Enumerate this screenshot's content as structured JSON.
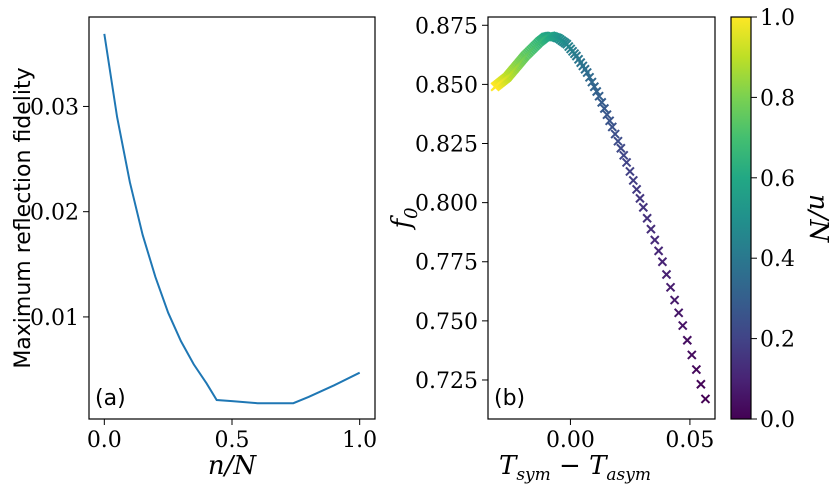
{
  "chart_data": [
    {
      "type": "line",
      "panel_label": "(a)",
      "xlabel": "n/N",
      "ylabel": "Maximum reflection fidelity",
      "xlim": [
        -0.06,
        1.06
      ],
      "ylim": [
        0.0003,
        0.0385
      ],
      "xticks": [
        0.0,
        0.5,
        1.0
      ],
      "xtick_labels": [
        "0.0",
        "0.5",
        "1.0"
      ],
      "yticks": [
        0.01,
        0.02,
        0.03
      ],
      "ytick_labels": [
        "0.01",
        "0.02",
        "0.03"
      ],
      "color": "#1f77b4",
      "x": [
        0.0,
        0.05,
        0.1,
        0.15,
        0.2,
        0.25,
        0.3,
        0.35,
        0.4,
        0.44,
        0.5,
        0.6,
        0.74,
        0.8,
        0.9,
        1.0
      ],
      "y": [
        0.0369,
        0.029,
        0.0228,
        0.0178,
        0.0138,
        0.0104,
        0.0077,
        0.0055,
        0.0037,
        0.0021,
        0.002,
        0.0018,
        0.0018,
        0.0024,
        0.0035,
        0.0047
      ],
      "grid": false,
      "legend": "none"
    },
    {
      "type": "scatter",
      "panel_label": "(b)",
      "xlabel": "T_sym − T_asym",
      "xlabel_parts": [
        "T",
        "sym",
        " − T",
        "asym"
      ],
      "ylabel": "f_0",
      "ylabel_parts": [
        "f",
        "0"
      ],
      "marker": "x",
      "xlim": [
        -0.0345,
        0.0605
      ],
      "ylim": [
        0.7085,
        0.8785
      ],
      "xticks": [
        0.0,
        0.05
      ],
      "xtick_labels": [
        "0.00",
        "0.05"
      ],
      "yticks": [
        0.725,
        0.75,
        0.775,
        0.8,
        0.825,
        0.85,
        0.875
      ],
      "ytick_labels": [
        "0.725",
        "0.750",
        "0.775",
        "0.800",
        "0.825",
        "0.850",
        "0.875"
      ],
      "points": {
        "n_over_N": [
          0.0,
          0.05,
          0.1,
          0.15,
          0.2,
          0.25,
          0.3,
          0.35,
          0.4,
          0.45,
          0.5,
          0.55,
          0.6,
          0.65,
          0.7,
          0.75,
          0.8,
          0.85,
          0.9,
          0.95,
          1.0
        ],
        "x": [
          0.0565,
          0.047,
          0.0385,
          0.0305,
          0.0235,
          0.0175,
          0.012,
          0.007,
          0.0025,
          -0.0015,
          -0.005,
          -0.008,
          -0.0105,
          -0.013,
          -0.016,
          -0.019,
          -0.0215,
          -0.024,
          -0.0265,
          -0.029,
          -0.0315
        ],
        "y": [
          0.717,
          0.748,
          0.775,
          0.798,
          0.817,
          0.832,
          0.845,
          0.855,
          0.862,
          0.867,
          0.8695,
          0.8705,
          0.87,
          0.868,
          0.865,
          0.862,
          0.859,
          0.856,
          0.853,
          0.851,
          0.849
        ]
      },
      "colorbar": {
        "label": "n/N",
        "colormap": "viridis",
        "range": [
          0.0,
          1.0
        ],
        "ticks": [
          0.0,
          0.2,
          0.4,
          0.6,
          0.8,
          1.0
        ],
        "tick_labels": [
          "0.0",
          "0.2",
          "0.4",
          "0.6",
          "0.8",
          "1.0"
        ]
      },
      "grid": false
    }
  ]
}
